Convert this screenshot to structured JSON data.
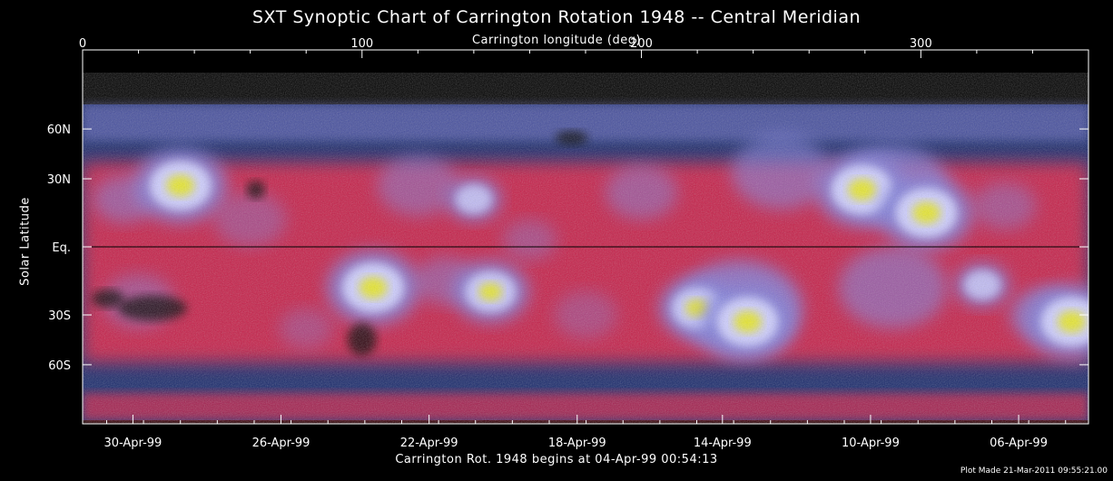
{
  "chart_data": {
    "type": "heatmap",
    "title": "SXT Synoptic Chart of Carrington Rotation 1948 -- Central Meridian",
    "top_axis": {
      "label": "Carrington longitude (deg)",
      "range": [
        0,
        360
      ],
      "ticks": [
        0,
        100,
        200,
        300
      ],
      "tick_labels": [
        "0",
        "100",
        "200",
        "300"
      ]
    },
    "left_axis": {
      "label": "Solar Latitude",
      "ticks": [
        {
          "label": "60N",
          "sinlat": 0.866
        },
        {
          "label": "30N",
          "sinlat": 0.5
        },
        {
          "label": "Eq.",
          "sinlat": 0.0
        },
        {
          "label": "30S",
          "sinlat": -0.5
        },
        {
          "label": "60S",
          "sinlat": -0.866
        }
      ]
    },
    "bottom_axis": {
      "label": "Carrington Rot. 1948 begins at 04-Apr-99 00:54:13",
      "tick_labels": [
        {
          "label": "30-Apr-99",
          "lon": 18
        },
        {
          "label": "26-Apr-99",
          "lon": 71
        },
        {
          "label": "22-Apr-99",
          "lon": 124
        },
        {
          "label": "18-Apr-99",
          "lon": 177
        },
        {
          "label": "14-Apr-99",
          "lon": 229
        },
        {
          "label": "10-Apr-99",
          "lon": 282
        },
        {
          "label": "06-Apr-99",
          "lon": 335
        }
      ]
    },
    "colors": {
      "background_low": "#1a2a6c",
      "quiet": "#ff1e3c",
      "mid": "#7f7fdc",
      "bright": "#cfcfff",
      "peak": "#e8e820"
    },
    "bright_regions": [
      {
        "lon": 35,
        "sinlat": 0.45,
        "intensity": "peak"
      },
      {
        "lon": 104,
        "sinlat": -0.3,
        "intensity": "peak"
      },
      {
        "lon": 146,
        "sinlat": -0.33,
        "intensity": "high"
      },
      {
        "lon": 220,
        "sinlat": -0.45,
        "intensity": "high"
      },
      {
        "lon": 238,
        "sinlat": -0.55,
        "intensity": "peak"
      },
      {
        "lon": 279,
        "sinlat": 0.42,
        "intensity": "peak"
      },
      {
        "lon": 302,
        "sinlat": 0.25,
        "intensity": "peak"
      },
      {
        "lon": 354,
        "sinlat": -0.55,
        "intensity": "peak"
      },
      {
        "lon": 322,
        "sinlat": -0.28,
        "intensity": "medium"
      },
      {
        "lon": 140,
        "sinlat": 0.35,
        "intensity": "medium"
      }
    ]
  },
  "footer_note": "Plot Made 21-Mar-2011 09:55:21.00"
}
